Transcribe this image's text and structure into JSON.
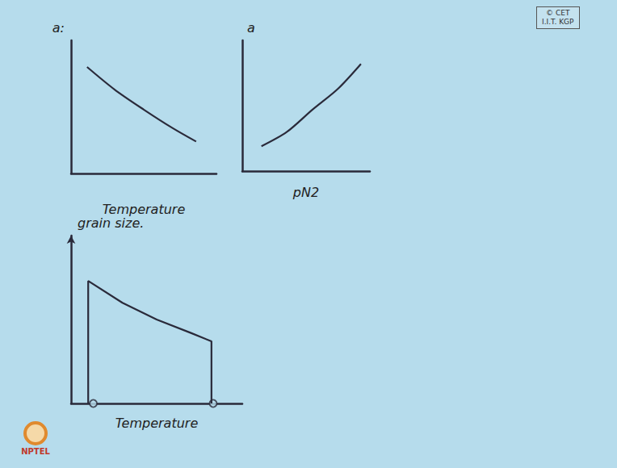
{
  "page": {
    "badge": [
      "© CET",
      "I.I.T. KGP"
    ],
    "logo": "NPTEL"
  },
  "chart_data": [
    {
      "type": "line",
      "y_label": "a:",
      "x_label": "Temperature",
      "xlim": [
        0,
        1
      ],
      "ylim": [
        0,
        1
      ],
      "grid": false,
      "tick_labels": false,
      "color": "#2a2a3a",
      "series": [
        {
          "x": [
            0.11,
            0.3,
            0.5,
            0.7,
            0.86
          ],
          "values": [
            0.8,
            0.63,
            0.48,
            0.34,
            0.24
          ]
        }
      ]
    },
    {
      "type": "line",
      "y_label": "a",
      "x_label": "pN2",
      "xlim": [
        0,
        1
      ],
      "ylim": [
        0,
        1
      ],
      "grid": false,
      "tick_labels": false,
      "color": "#2a2a3a",
      "series": [
        {
          "x": [
            0.15,
            0.35,
            0.55,
            0.75,
            0.93
          ],
          "values": [
            0.19,
            0.3,
            0.47,
            0.63,
            0.82
          ]
        }
      ]
    },
    {
      "type": "line",
      "y_label": "grain size.",
      "x_label": "Temperature",
      "xlim": [
        0,
        1
      ],
      "ylim": [
        0,
        1
      ],
      "grid": false,
      "tick_labels": false,
      "color": "#2a2a3a",
      "series": [
        {
          "type": "line",
          "x": [
            0.1,
            0.1,
            0.3,
            0.5,
            0.7,
            0.82,
            0.82
          ],
          "values": [
            0,
            0.73,
            0.6,
            0.5,
            0.42,
            0.37,
            0
          ]
        },
        {
          "type": "scatter",
          "marker": "circle",
          "x": [
            0.13,
            0.83
          ],
          "values": [
            0,
            0
          ]
        }
      ]
    }
  ]
}
